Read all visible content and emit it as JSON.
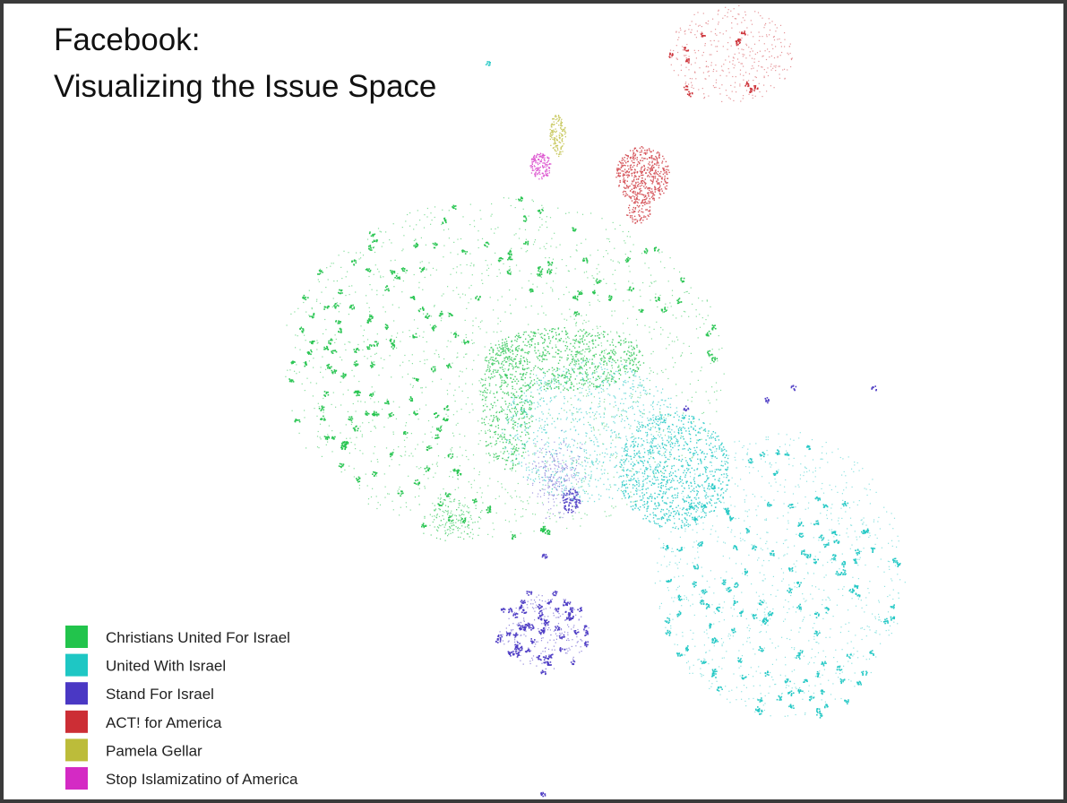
{
  "header": {
    "title_lines": [
      "Facebook:",
      "Visualizing the Issue Space"
    ]
  },
  "legend": [
    {
      "label": "Christians United For Israel",
      "color": "#22c44c"
    },
    {
      "label": "United With Israel",
      "color": "#1ec7c4"
    },
    {
      "label": "Stand For Israel",
      "color": "#4a38c4"
    },
    {
      "label": "ACT! for America",
      "color": "#cc2e35"
    },
    {
      "label": "Pamela Gellar",
      "color": "#bcbc3a"
    },
    {
      "label": "Stop Islamizatino of America",
      "color": "#d42ac4"
    }
  ]
}
